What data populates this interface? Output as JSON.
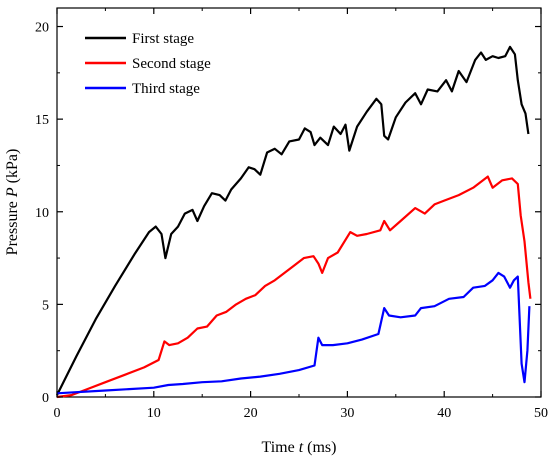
{
  "chart_data": {
    "type": "line",
    "xlabel": {
      "prefix": "Time ",
      "var": "t",
      "unit": " (ms)"
    },
    "ylabel": {
      "prefix": "Pressure ",
      "var": "P",
      "unit": " (kPa)"
    },
    "xlim": [
      0,
      50
    ],
    "ylim": [
      0,
      21
    ],
    "xticks": [
      0,
      10,
      20,
      30,
      40,
      50
    ],
    "yticks": [
      0,
      5,
      10,
      15,
      20
    ],
    "grid": false,
    "legend_position": "top-left",
    "series": [
      {
        "name": "First stage",
        "color": "#000000",
        "points": [
          [
            0,
            0.1
          ],
          [
            2,
            2.2
          ],
          [
            4,
            4.2
          ],
          [
            6,
            6.0
          ],
          [
            8,
            7.7
          ],
          [
            9.5,
            8.9
          ],
          [
            10.2,
            9.2
          ],
          [
            10.8,
            8.8
          ],
          [
            11.2,
            7.5
          ],
          [
            11.8,
            8.8
          ],
          [
            12.5,
            9.2
          ],
          [
            13.2,
            9.9
          ],
          [
            14,
            10.1
          ],
          [
            14.5,
            9.5
          ],
          [
            15.2,
            10.3
          ],
          [
            16,
            11.0
          ],
          [
            16.8,
            10.9
          ],
          [
            17.4,
            10.6
          ],
          [
            18,
            11.2
          ],
          [
            19,
            11.8
          ],
          [
            19.8,
            12.4
          ],
          [
            20.4,
            12.3
          ],
          [
            21,
            12.0
          ],
          [
            21.7,
            13.2
          ],
          [
            22.5,
            13.4
          ],
          [
            23.2,
            13.1
          ],
          [
            24,
            13.8
          ],
          [
            25,
            13.9
          ],
          [
            25.6,
            14.5
          ],
          [
            26.2,
            14.3
          ],
          [
            26.6,
            13.6
          ],
          [
            27.2,
            14.0
          ],
          [
            28,
            13.6
          ],
          [
            28.6,
            14.6
          ],
          [
            29.3,
            14.2
          ],
          [
            29.8,
            14.7
          ],
          [
            30.2,
            13.3
          ],
          [
            31,
            14.6
          ],
          [
            32,
            15.4
          ],
          [
            33,
            16.1
          ],
          [
            33.5,
            15.8
          ],
          [
            33.8,
            14.1
          ],
          [
            34.2,
            13.9
          ],
          [
            35,
            15.1
          ],
          [
            36,
            15.9
          ],
          [
            37,
            16.4
          ],
          [
            37.6,
            15.8
          ],
          [
            38.3,
            16.6
          ],
          [
            39.3,
            16.5
          ],
          [
            40.2,
            17.1
          ],
          [
            40.8,
            16.5
          ],
          [
            41.5,
            17.6
          ],
          [
            42.3,
            17.0
          ],
          [
            43.2,
            18.2
          ],
          [
            43.8,
            18.6
          ],
          [
            44.3,
            18.2
          ],
          [
            45,
            18.4
          ],
          [
            45.6,
            18.3
          ],
          [
            46.3,
            18.4
          ],
          [
            46.8,
            18.9
          ],
          [
            47.3,
            18.5
          ],
          [
            47.6,
            17.1
          ],
          [
            48,
            15.8
          ],
          [
            48.4,
            15.3
          ],
          [
            48.7,
            14.2
          ]
        ]
      },
      {
        "name": "Second stage",
        "color": "#ff0000",
        "points": [
          [
            0,
            0
          ],
          [
            1.5,
            0.1
          ],
          [
            3,
            0.4
          ],
          [
            5,
            0.8
          ],
          [
            7,
            1.2
          ],
          [
            9,
            1.6
          ],
          [
            10.5,
            2.0
          ],
          [
            11.1,
            3.0
          ],
          [
            11.6,
            2.8
          ],
          [
            12.5,
            2.9
          ],
          [
            13.5,
            3.2
          ],
          [
            14.5,
            3.7
          ],
          [
            15.5,
            3.8
          ],
          [
            16.5,
            4.4
          ],
          [
            17.5,
            4.6
          ],
          [
            18.5,
            5.0
          ],
          [
            19.5,
            5.3
          ],
          [
            20.5,
            5.5
          ],
          [
            21.5,
            6.0
          ],
          [
            22.5,
            6.3
          ],
          [
            23.5,
            6.7
          ],
          [
            24.5,
            7.1
          ],
          [
            25.5,
            7.5
          ],
          [
            26.5,
            7.6
          ],
          [
            27,
            7.2
          ],
          [
            27.4,
            6.7
          ],
          [
            28,
            7.5
          ],
          [
            29,
            7.8
          ],
          [
            30.3,
            8.9
          ],
          [
            31,
            8.7
          ],
          [
            32,
            8.8
          ],
          [
            33.4,
            9.0
          ],
          [
            33.8,
            9.5
          ],
          [
            34.4,
            9.0
          ],
          [
            35.5,
            9.5
          ],
          [
            37,
            10.2
          ],
          [
            38,
            9.9
          ],
          [
            39,
            10.4
          ],
          [
            40,
            10.6
          ],
          [
            41.5,
            10.9
          ],
          [
            43,
            11.3
          ],
          [
            44.5,
            11.9
          ],
          [
            45,
            11.3
          ],
          [
            46,
            11.7
          ],
          [
            47,
            11.8
          ],
          [
            47.6,
            11.5
          ],
          [
            47.9,
            9.8
          ],
          [
            48.3,
            8.4
          ],
          [
            48.7,
            6.2
          ],
          [
            48.9,
            5.3
          ]
        ]
      },
      {
        "name": "Third stage",
        "color": "#0000ff",
        "points": [
          [
            0,
            0.2
          ],
          [
            5,
            0.35
          ],
          [
            10,
            0.5
          ],
          [
            11.5,
            0.65
          ],
          [
            13,
            0.7
          ],
          [
            15,
            0.8
          ],
          [
            17,
            0.85
          ],
          [
            19,
            1.0
          ],
          [
            21,
            1.1
          ],
          [
            23,
            1.25
          ],
          [
            25,
            1.45
          ],
          [
            26.6,
            1.7
          ],
          [
            27,
            3.2
          ],
          [
            27.4,
            2.8
          ],
          [
            28.5,
            2.8
          ],
          [
            30,
            2.9
          ],
          [
            31.5,
            3.1
          ],
          [
            33.2,
            3.4
          ],
          [
            33.8,
            4.8
          ],
          [
            34.3,
            4.4
          ],
          [
            35.5,
            4.3
          ],
          [
            37,
            4.4
          ],
          [
            37.6,
            4.8
          ],
          [
            39,
            4.9
          ],
          [
            40.5,
            5.3
          ],
          [
            42,
            5.4
          ],
          [
            43,
            5.9
          ],
          [
            44.2,
            6.0
          ],
          [
            45,
            6.3
          ],
          [
            45.6,
            6.7
          ],
          [
            46.2,
            6.5
          ],
          [
            46.8,
            5.9
          ],
          [
            47.2,
            6.3
          ],
          [
            47.6,
            6.5
          ],
          [
            48,
            1.8
          ],
          [
            48.3,
            0.8
          ],
          [
            48.6,
            2.5
          ],
          [
            48.8,
            4.9
          ]
        ]
      }
    ]
  }
}
